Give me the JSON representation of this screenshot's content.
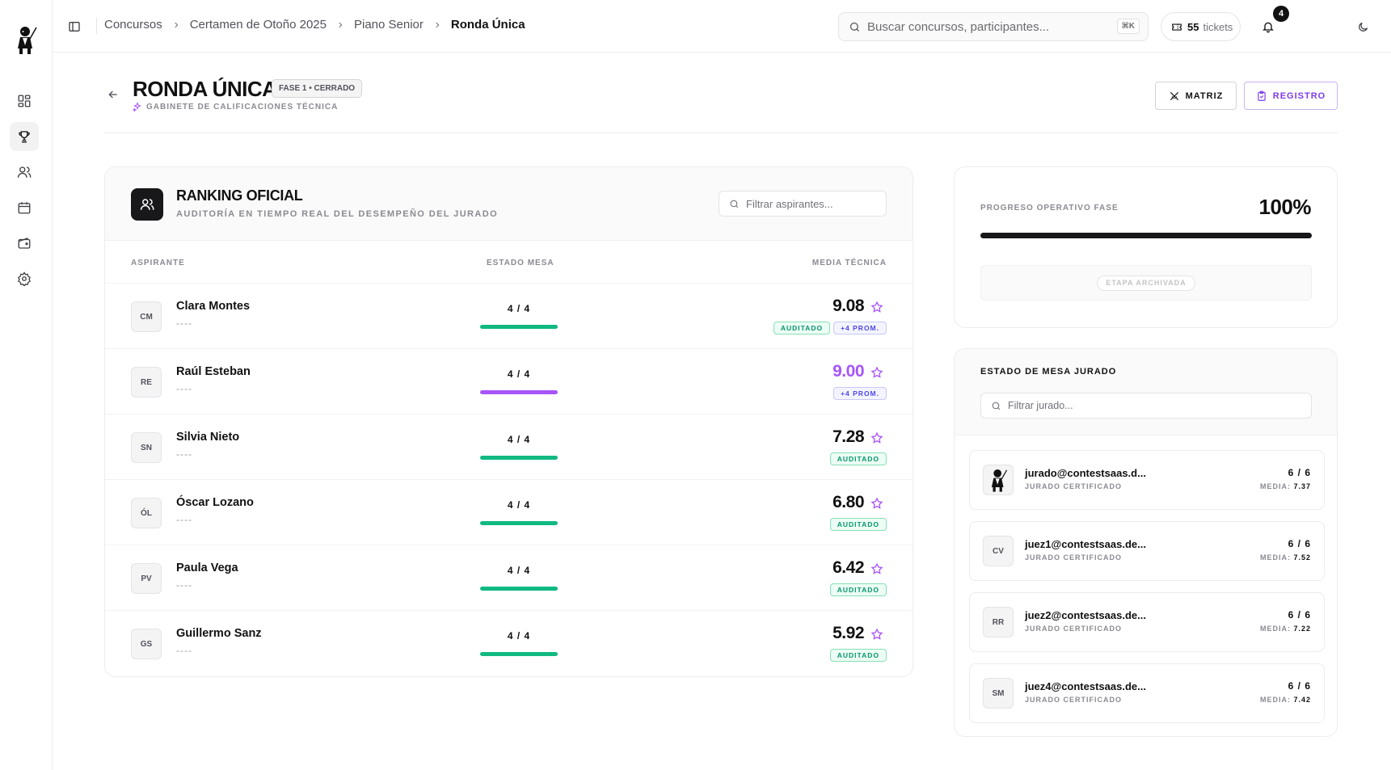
{
  "breadcrumb": [
    "Concursos",
    "Certamen de Otoño 2025",
    "Piano Senior",
    "Ronda Única"
  ],
  "search": {
    "placeholder": "Buscar concursos, participantes...",
    "shortcut": "⌘K"
  },
  "tickets": {
    "count": "55",
    "label": "tickets"
  },
  "notifications": {
    "count": "4"
  },
  "page": {
    "title": "RONDA ÚNICA",
    "phase_badge": "FASE 1 • CERRADO",
    "subtitle": "GABINETE DE CALIFICACIONES TÉCNICA",
    "btn_matriz": "MATRIZ",
    "btn_registro": "REGISTRO"
  },
  "ranking": {
    "title": "RANKING OFICIAL",
    "subtitle": "AUDITORÍA EN TIEMPO REAL DEL DESEMPEÑO DEL JURADO",
    "filter_placeholder": "Filtrar aspirantes...",
    "columns": {
      "aspirante": "ASPIRANTE",
      "estado": "ESTADO MESA",
      "media": "MEDIA TÉCNICA"
    },
    "rows": [
      {
        "initials": "CM",
        "name": "Clara Montes",
        "sub": "----",
        "count": "4 / 4",
        "score": "9.08",
        "audited": "AUDITADO",
        "prom": "+4 PROM."
      },
      {
        "initials": "RE",
        "name": "Raúl Esteban",
        "sub": "----",
        "count": "4 / 4",
        "score": "9.00",
        "audited": "",
        "prom": "+4 PROM."
      },
      {
        "initials": "SN",
        "name": "Silvia Nieto",
        "sub": "----",
        "count": "4 / 4",
        "score": "7.28",
        "audited": "AUDITADO",
        "prom": ""
      },
      {
        "initials": "ÓL",
        "name": "Óscar Lozano",
        "sub": "----",
        "count": "4 / 4",
        "score": "6.80",
        "audited": "AUDITADO",
        "prom": ""
      },
      {
        "initials": "PV",
        "name": "Paula Vega",
        "sub": "----",
        "count": "4 / 4",
        "score": "6.42",
        "audited": "AUDITADO",
        "prom": ""
      },
      {
        "initials": "GS",
        "name": "Guillermo Sanz",
        "sub": "----",
        "count": "4 / 4",
        "score": "5.92",
        "audited": "AUDITADO",
        "prom": ""
      }
    ]
  },
  "progress": {
    "label": "PROGRESO OPERATIVO FASE",
    "value": "100%",
    "fraction": 1.0,
    "archived": "ETAPA ARCHIVADA"
  },
  "jury": {
    "title": "ESTADO DE MESA JURADO",
    "filter_placeholder": "Filtrar jurado...",
    "media_label": "MEDIA:",
    "items": [
      {
        "initials": "",
        "email": "jurado@contestsaas.d...",
        "role": "JURADO CERTIFICADO",
        "count": "6 / 6",
        "media": "7.37"
      },
      {
        "initials": "CV",
        "email": "juez1@contestsaas.de...",
        "role": "JURADO CERTIFICADO",
        "count": "6 / 6",
        "media": "7.52"
      },
      {
        "initials": "RR",
        "email": "juez2@contestsaas.de...",
        "role": "JURADO CERTIFICADO",
        "count": "6 / 6",
        "media": "7.22"
      },
      {
        "initials": "SM",
        "email": "juez4@contestsaas.de...",
        "role": "JURADO CERTIFICADO",
        "count": "6 / 6",
        "media": "7.42"
      }
    ]
  },
  "colors": {
    "accent": "#a855f7",
    "success": "#10b981",
    "dark": "#18181b"
  },
  "icons": {
    "sidebar": [
      "dashboard-icon",
      "trophy-icon",
      "users-icon",
      "calendar-icon",
      "wallet-icon",
      "settings-icon"
    ]
  }
}
